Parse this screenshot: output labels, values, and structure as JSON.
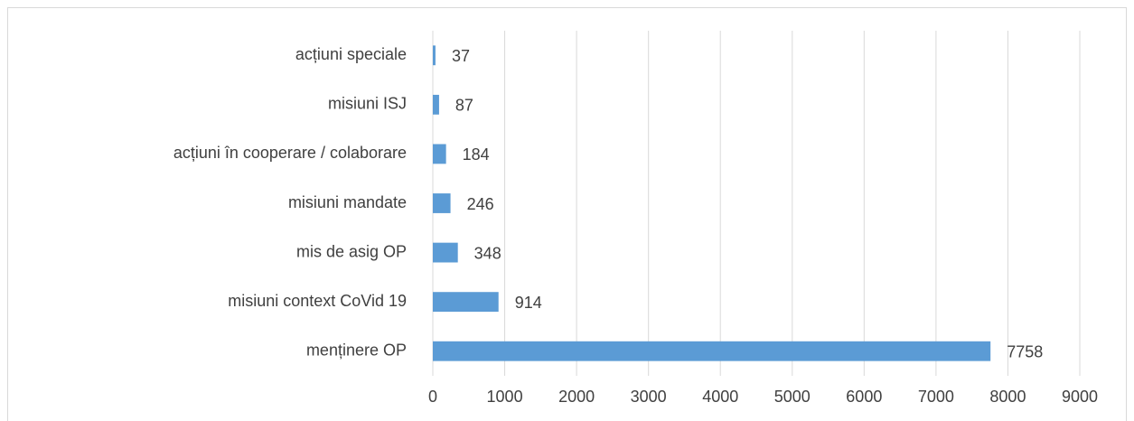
{
  "chart_data": {
    "type": "hbar",
    "categories": [
      "acțiuni speciale",
      "misiuni ISJ",
      "acțiuni în cooperare / colaborare",
      "misiuni mandate",
      "mis de asig OP",
      "misiuni context CoVid 19",
      "menținere OP"
    ],
    "values": [
      37,
      87,
      184,
      246,
      348,
      914,
      7758
    ],
    "color": "#5b9bd5",
    "xlim": [
      0,
      9000
    ],
    "xticks": [
      0,
      1000,
      2000,
      3000,
      4000,
      5000,
      6000,
      7000,
      8000,
      9000
    ],
    "grid": true
  }
}
